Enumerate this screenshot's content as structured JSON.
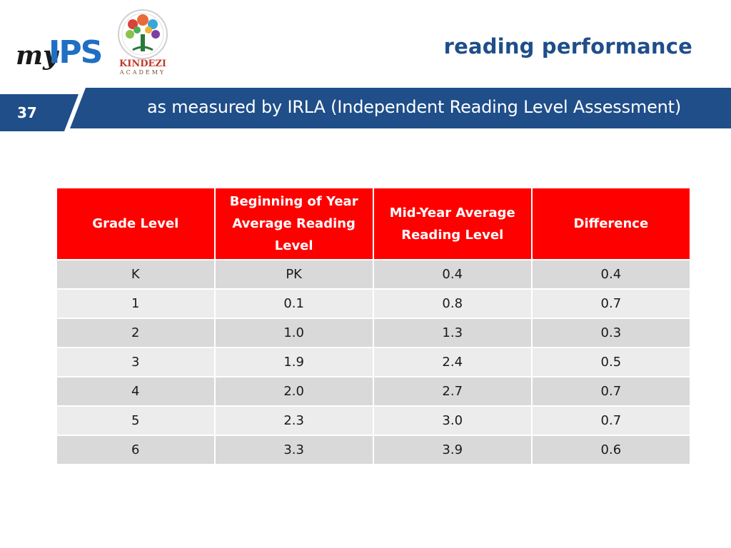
{
  "header": {
    "title": "reading performance",
    "logo_text_my": "my",
    "logo_text_ips": "IPS",
    "kindezi_name": "KINDEZI",
    "kindezi_sub": "ACADEMY"
  },
  "banner": {
    "slide_number": "37",
    "subtitle": "as measured by IRLA (Independent Reading Level Assessment)"
  },
  "colors": {
    "title_blue": "#1f4e89",
    "banner_blue": "#1f4e89",
    "header_red": "#ff0000",
    "row_dark": "#d9d9d9",
    "row_light": "#ececec"
  },
  "table": {
    "columns": [
      "Grade Level",
      "Beginning of Year Average Reading Level",
      "Mid-Year Average Reading Level",
      "Difference"
    ],
    "rows": [
      [
        "K",
        "PK",
        "0.4",
        "0.4"
      ],
      [
        "1",
        "0.1",
        "0.8",
        "0.7"
      ],
      [
        "2",
        "1.0",
        "1.3",
        "0.3"
      ],
      [
        "3",
        "1.9",
        "2.4",
        "0.5"
      ],
      [
        "4",
        "2.0",
        "2.7",
        "0.7"
      ],
      [
        "5",
        "2.3",
        "3.0",
        "0.7"
      ],
      [
        "6",
        "3.3",
        "3.9",
        "0.6"
      ]
    ]
  }
}
